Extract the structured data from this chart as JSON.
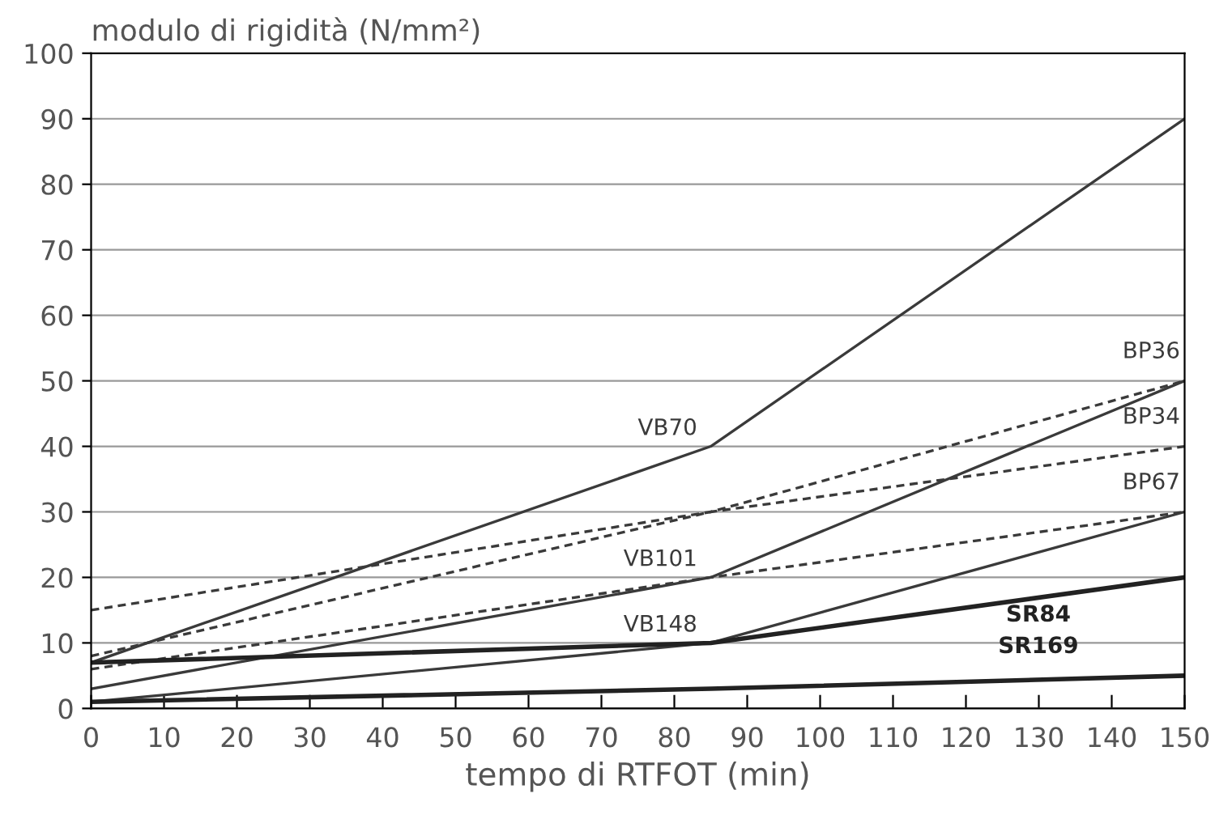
{
  "chart_data": {
    "type": "line",
    "ylabel": "modulo di rigidità (N/mm²)",
    "xlabel": "tempo di RTFOT (min)",
    "x": [
      0,
      85,
      150
    ],
    "series": [
      {
        "name": "VB70",
        "color": "#3a3a3a",
        "values": [
          7,
          40,
          90
        ],
        "line_style": "solid"
      },
      {
        "name": "BP36",
        "color": "#3a3a3a",
        "values": [
          15,
          30,
          50
        ],
        "line_style": "dashed"
      },
      {
        "name": "BP34",
        "color": "#3a3a3a",
        "values": [
          8,
          30,
          40
        ],
        "line_style": "dashed"
      },
      {
        "name": "VB101",
        "color": "#3a3a3a",
        "values": [
          3,
          20,
          50
        ],
        "line_style": "solid"
      },
      {
        "name": "BP67",
        "color": "#3a3a3a",
        "values": [
          6,
          20,
          30
        ],
        "line_style": "dashed"
      },
      {
        "name": "VB148",
        "color": "#3a3a3a",
        "values": [
          1,
          10,
          30
        ],
        "line_style": "solid"
      },
      {
        "name": "SR84",
        "color": "#222222",
        "values": [
          7,
          10,
          20
        ],
        "line_style": "solid"
      },
      {
        "name": "SR169",
        "color": "#222222",
        "values": [
          1,
          3,
          5
        ],
        "line_style": "solid"
      }
    ],
    "xlim": [
      0,
      150
    ],
    "xticks": [
      0,
      10,
      20,
      30,
      40,
      50,
      60,
      70,
      80,
      90,
      100,
      110,
      120,
      130,
      140,
      150
    ],
    "ylim": [
      0,
      100
    ],
    "yticks": [
      0,
      10,
      20,
      30,
      40,
      50,
      60,
      70,
      80,
      90,
      100
    ],
    "grid": "y",
    "marker": "none",
    "legend": false
  }
}
